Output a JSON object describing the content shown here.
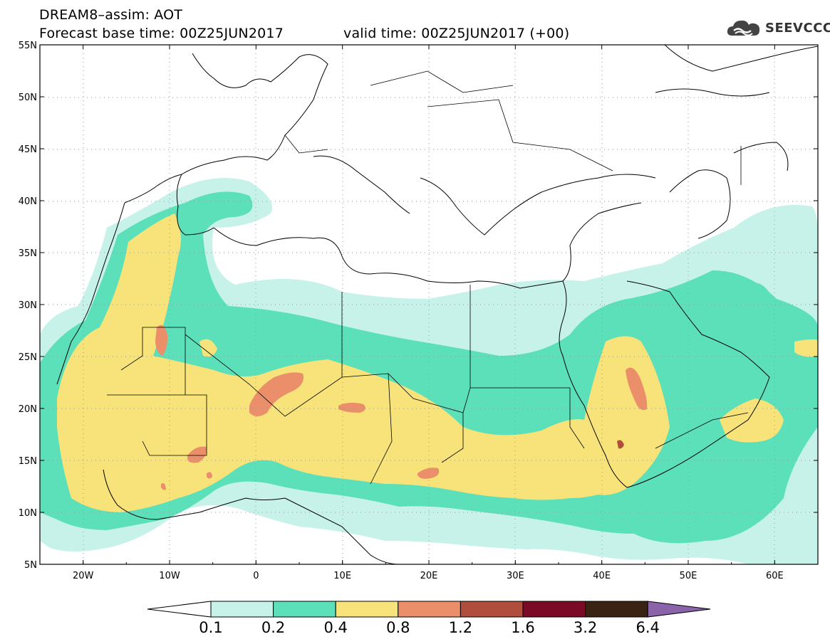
{
  "title": {
    "line1": "DREAM8–assim: AOT",
    "base_time": "Forecast base time: 00Z25JUN2017",
    "valid_time": "valid time: 00Z25JUN2017 (+00)"
  },
  "logo": {
    "text": "SEEVCCC",
    "icon": "cloud-icon"
  },
  "axes": {
    "lat_labels": [
      "55N",
      "50N",
      "45N",
      "40N",
      "35N",
      "30N",
      "25N",
      "20N",
      "15N",
      "10N",
      "5N"
    ],
    "lon_labels": [
      "20W",
      "10W",
      "0",
      "10E",
      "20E",
      "30E",
      "40E",
      "50E",
      "60E"
    ]
  },
  "colorbar": {
    "labels": [
      "0.1",
      "0.2",
      "0.4",
      "0.8",
      "1.2",
      "1.6",
      "3.2",
      "6.4"
    ],
    "colors": [
      "#ffffff",
      "#c6f2ea",
      "#5be0b9",
      "#f7e37a",
      "#eb8f6b",
      "#b04d3c",
      "#7a0a25",
      "#3a2312",
      "#8a63a8"
    ]
  }
}
